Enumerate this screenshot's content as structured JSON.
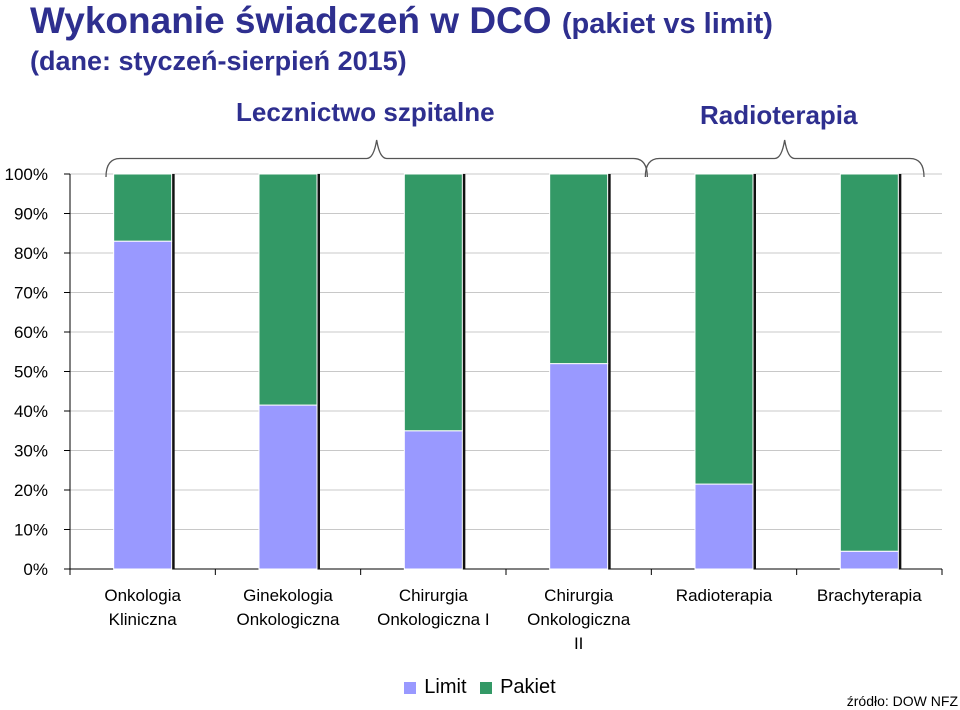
{
  "title": {
    "main": "Wykonanie świadczeń w DCO",
    "suffix": "(pakiet vs limit)",
    "subtitle": "(dane: styczeń-sierpień 2015)"
  },
  "groups": [
    {
      "label": "Lecznictwo szpitalne",
      "from": 0,
      "to": 3
    },
    {
      "label": "Radioterapia",
      "from": 4,
      "to": 5
    }
  ],
  "legend": [
    {
      "name": "Limit",
      "color": "#9999FF"
    },
    {
      "name": "Pakiet",
      "color": "#339966"
    }
  ],
  "source": "źródło: DOW NFZ",
  "colors": {
    "limit": "#9999FF",
    "pakiet": "#339966",
    "title": "#2E2F8F",
    "grid": "#C8C8C8"
  },
  "chart_data": {
    "type": "bar",
    "stacked": true,
    "normalized_percent": true,
    "categories": [
      [
        "Onkologia",
        "Kliniczna"
      ],
      [
        "Ginekologia",
        "Onkologiczna"
      ],
      [
        "Chirurgia",
        "Onkologiczna I"
      ],
      [
        "Chirurgia",
        "Onkologiczna",
        "II"
      ],
      [
        "Radioterapia"
      ],
      [
        "Brachyterapia"
      ]
    ],
    "series": [
      {
        "name": "Limit",
        "color": "#9999FF",
        "values": [
          83,
          41.5,
          35,
          52,
          21.5,
          4.5
        ]
      },
      {
        "name": "Pakiet",
        "color": "#339966",
        "values": [
          17,
          58.5,
          65,
          48,
          78.5,
          95.5
        ]
      }
    ],
    "ylim": [
      0,
      100
    ],
    "yticks": [
      "0%",
      "10%",
      "20%",
      "30%",
      "40%",
      "50%",
      "60%",
      "70%",
      "80%",
      "90%",
      "100%"
    ],
    "grid": true,
    "legend_position": "bottom"
  }
}
